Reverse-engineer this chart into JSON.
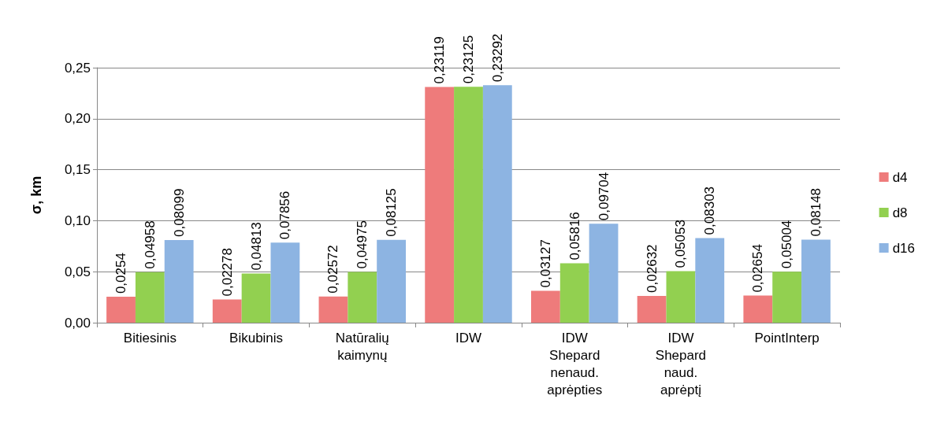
{
  "chart_data": {
    "type": "bar",
    "ylabel": "σ, km",
    "categories": [
      "Bitiesinis",
      "Bikubinis",
      "Natūralių kaimynų",
      "IDW",
      "IDW Shepard nenaud. aprėpties",
      "IDW Shepard naud. aprėptį",
      "PointInterp"
    ],
    "series": [
      {
        "name": "d4",
        "color": "#ee7b7b",
        "values": [
          0.0254,
          0.02278,
          0.02572,
          0.23119,
          0.03127,
          0.02632,
          0.02654
        ],
        "value_labels": [
          "0,0254",
          "0,02278",
          "0,02572",
          "0,23119",
          "0,03127",
          "0,02632",
          "0,02654"
        ]
      },
      {
        "name": "d8",
        "color": "#92d050",
        "values": [
          0.04958,
          0.04813,
          0.04975,
          0.23125,
          0.05816,
          0.05053,
          0.05004
        ],
        "value_labels": [
          "0,04958",
          "0,04813",
          "0,04975",
          "0,23125",
          "0,05816",
          "0,05053",
          "0,05004"
        ]
      },
      {
        "name": "d16",
        "color": "#8db4e2",
        "values": [
          0.08099,
          0.07856,
          0.08125,
          0.23292,
          0.09704,
          0.08303,
          0.08148
        ],
        "value_labels": [
          "0,08099",
          "0,07856",
          "0,08125",
          "0,23292",
          "0,09704",
          "0,08303",
          "0,08148"
        ]
      }
    ],
    "ylim": [
      0,
      0.25
    ],
    "yticks": [
      {
        "value": 0,
        "label": "0,00"
      },
      {
        "value": 0.05,
        "label": "0,05"
      },
      {
        "value": 0.1,
        "label": "0,10"
      },
      {
        "value": 0.15,
        "label": "0,15"
      },
      {
        "value": 0.2,
        "label": "0,20"
      },
      {
        "value": 0.25,
        "label": "0,25"
      }
    ],
    "grid": "y",
    "legend": "right"
  }
}
